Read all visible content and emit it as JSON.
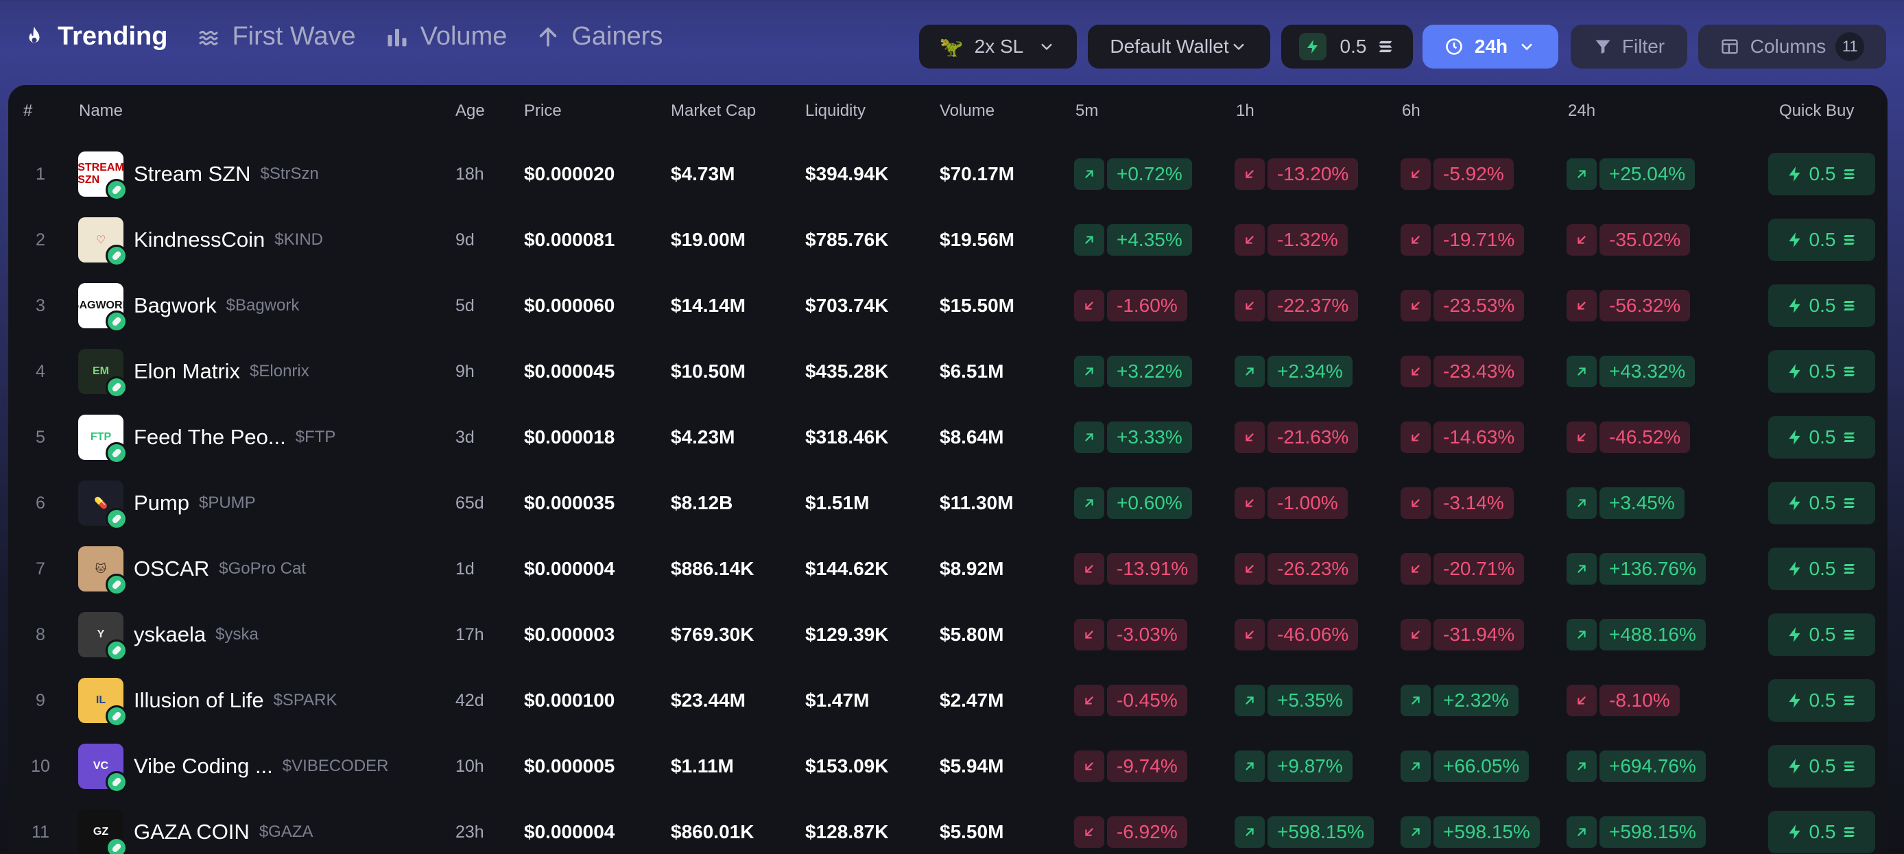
{
  "nav": {
    "tabs": [
      {
        "label": "Trending",
        "icon": "flame-icon"
      },
      {
        "label": "First Wave",
        "icon": "waves-icon"
      },
      {
        "label": "Volume",
        "icon": "bar-chart-icon"
      },
      {
        "label": "Gainers",
        "icon": "arrow-up-icon"
      }
    ]
  },
  "toolbar": {
    "sl_label": "2x SL",
    "wallet_label": "Default Wallet",
    "amount": "0.5",
    "timeframe": "24h",
    "filter_label": "Filter",
    "columns_label": "Columns",
    "columns_count": "11"
  },
  "table": {
    "headers": {
      "num": "#",
      "name": "Name",
      "age": "Age",
      "price": "Price",
      "mcap": "Market Cap",
      "liquidity": "Liquidity",
      "volume": "Volume",
      "m5": "5m",
      "h1": "1h",
      "h6": "6h",
      "h24": "24h",
      "quick_buy": "Quick Buy"
    },
    "rows": [
      {
        "num": "1",
        "name": "Stream SZN",
        "ticker": "$StrSzn",
        "age": "18h",
        "price": "$0.000020",
        "mcap": "$4.73M",
        "liq": "$394.94K",
        "vol": "$70.17M",
        "m5": "+0.72%",
        "h1": "-13.20%",
        "h6": "-5.92%",
        "h24": "+25.04%",
        "qb": "0.5"
      },
      {
        "num": "2",
        "name": "KindnessCoin",
        "ticker": "$KIND",
        "age": "9d",
        "price": "$0.000081",
        "mcap": "$19.00M",
        "liq": "$785.76K",
        "vol": "$19.56M",
        "m5": "+4.35%",
        "h1": "-1.32%",
        "h6": "-19.71%",
        "h24": "-35.02%",
        "qb": "0.5"
      },
      {
        "num": "3",
        "name": "Bagwork",
        "ticker": "$Bagwork",
        "age": "5d",
        "price": "$0.000060",
        "mcap": "$14.14M",
        "liq": "$703.74K",
        "vol": "$15.50M",
        "m5": "-1.60%",
        "h1": "-22.37%",
        "h6": "-23.53%",
        "h24": "-56.32%",
        "qb": "0.5"
      },
      {
        "num": "4",
        "name": "Elon Matrix",
        "ticker": "$Elonrix",
        "age": "9h",
        "price": "$0.000045",
        "mcap": "$10.50M",
        "liq": "$435.28K",
        "vol": "$6.51M",
        "m5": "+3.22%",
        "h1": "+2.34%",
        "h6": "-23.43%",
        "h24": "+43.32%",
        "qb": "0.5"
      },
      {
        "num": "5",
        "name": "Feed The Peo...",
        "ticker": "$FTP",
        "age": "3d",
        "price": "$0.000018",
        "mcap": "$4.23M",
        "liq": "$318.46K",
        "vol": "$8.64M",
        "m5": "+3.33%",
        "h1": "-21.63%",
        "h6": "-14.63%",
        "h24": "-46.52%",
        "qb": "0.5"
      },
      {
        "num": "6",
        "name": "Pump",
        "ticker": "$PUMP",
        "age": "65d",
        "price": "$0.000035",
        "mcap": "$8.12B",
        "liq": "$1.51M",
        "vol": "$11.30M",
        "m5": "+0.60%",
        "h1": "-1.00%",
        "h6": "-3.14%",
        "h24": "+3.45%",
        "qb": "0.5"
      },
      {
        "num": "7",
        "name": "OSCAR",
        "ticker": "$GoPro Cat",
        "age": "1d",
        "price": "$0.000004",
        "mcap": "$886.14K",
        "liq": "$144.62K",
        "vol": "$8.92M",
        "m5": "-13.91%",
        "h1": "-26.23%",
        "h6": "-20.71%",
        "h24": "+136.76%",
        "qb": "0.5"
      },
      {
        "num": "8",
        "name": "yskaela",
        "ticker": "$yska",
        "age": "17h",
        "price": "$0.000003",
        "mcap": "$769.30K",
        "liq": "$129.39K",
        "vol": "$5.80M",
        "m5": "-3.03%",
        "h1": "-46.06%",
        "h6": "-31.94%",
        "h24": "+488.16%",
        "qb": "0.5"
      },
      {
        "num": "9",
        "name": "Illusion of Life",
        "ticker": "$SPARK",
        "age": "42d",
        "price": "$0.000100",
        "mcap": "$23.44M",
        "liq": "$1.47M",
        "vol": "$2.47M",
        "m5": "-0.45%",
        "h1": "+5.35%",
        "h6": "+2.32%",
        "h24": "-8.10%",
        "qb": "0.5"
      },
      {
        "num": "10",
        "name": "Vibe Coding ...",
        "ticker": "$VIBECODER",
        "age": "10h",
        "price": "$0.000005",
        "mcap": "$1.11M",
        "liq": "$153.09K",
        "vol": "$5.94M",
        "m5": "-9.74%",
        "h1": "+9.87%",
        "h6": "+66.05%",
        "h24": "+694.76%",
        "qb": "0.5"
      },
      {
        "num": "11",
        "name": "GAZA COIN",
        "ticker": "$GAZA",
        "age": "23h",
        "price": "$0.000004",
        "mcap": "$860.01K",
        "liq": "$128.87K",
        "vol": "$5.50M",
        "m5": "-6.92%",
        "h1": "+598.15%",
        "h6": "+598.15%",
        "h24": "+598.15%",
        "qb": "0.5"
      }
    ]
  },
  "avatars": [
    {
      "bg": "#ffffff",
      "fg": "#c00000",
      "text": "STREAM SZN"
    },
    {
      "bg": "#efe6d2",
      "fg": "#c0392b",
      "text": "♡"
    },
    {
      "bg": "#ffffff",
      "fg": "#111111",
      "text": "BAGWORK"
    },
    {
      "bg": "#1f2a20",
      "fg": "#7fd67f",
      "text": "EM"
    },
    {
      "bg": "#ffffff",
      "fg": "#2ec27e",
      "text": "FTP"
    },
    {
      "bg": "#1c1e2a",
      "fg": "#ffffff",
      "text": "💊"
    },
    {
      "bg": "#c9a27a",
      "fg": "#4a3320",
      "text": "🐱"
    },
    {
      "bg": "#3a3a3a",
      "fg": "#eeeeee",
      "text": "Y"
    },
    {
      "bg": "#f2c14e",
      "fg": "#1d3f8f",
      "text": "IL"
    },
    {
      "bg": "#6d4bd1",
      "fg": "#ffffff",
      "text": "VC"
    },
    {
      "bg": "#111111",
      "fg": "#ffffff",
      "text": "GZ"
    }
  ],
  "colors": {
    "up": "#37d18a",
    "down": "#f0527a",
    "accent": "#5b7cf7"
  }
}
